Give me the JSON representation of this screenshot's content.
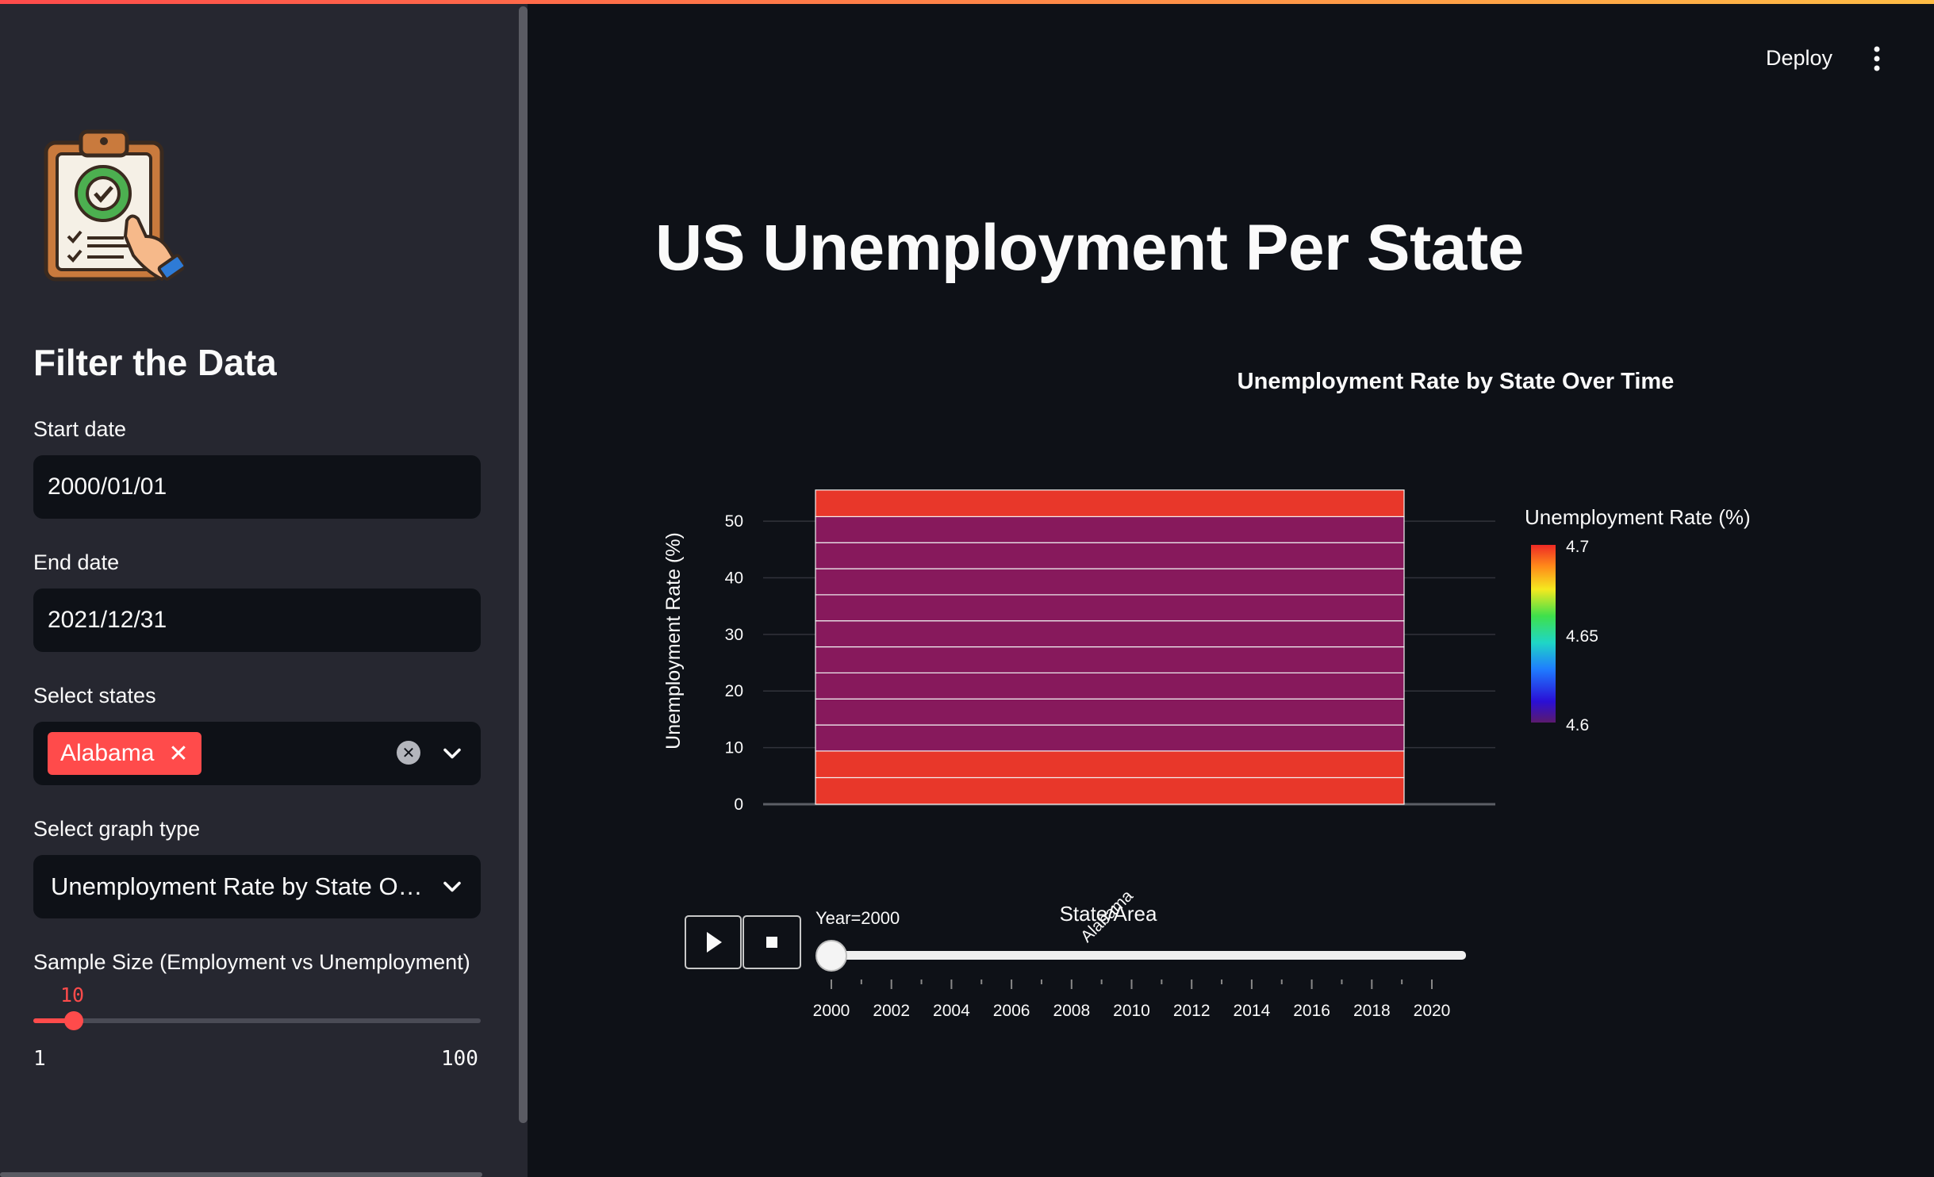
{
  "sidebar": {
    "logo_icon": "clipboard-gear-check-icon",
    "title": "Filter the Data",
    "start_date": {
      "label": "Start date",
      "value": "2000/01/01"
    },
    "end_date": {
      "label": "End date",
      "value": "2021/12/31"
    },
    "states": {
      "label": "Select states",
      "selected": [
        "Alabama"
      ]
    },
    "graph_type": {
      "label": "Select graph type",
      "value": "Unemployment Rate by State O…"
    },
    "sample_size": {
      "label": "Sample Size (Employment vs Unemployment)",
      "value": 10,
      "min": 1,
      "max": 100,
      "min_label": "1",
      "max_label": "100",
      "value_label": "10"
    }
  },
  "header": {
    "deploy_label": "Deploy",
    "menu_icon": "more-vertical-icon"
  },
  "main": {
    "title": "US Unemployment Per State"
  },
  "chart_data": {
    "type": "bar",
    "title": "Unemployment Rate by State Over Time",
    "xlabel": "State/Area",
    "ylabel": "Unemployment Rate (%)",
    "categories": [
      "Alabama"
    ],
    "stack_segments_rate": [
      4.7,
      4.7,
      4.6,
      4.6,
      4.6,
      4.6,
      4.6,
      4.6,
      4.6,
      4.6,
      4.6,
      4.7
    ],
    "total": 55.6,
    "yticks": [
      "0",
      "10",
      "20",
      "30",
      "40",
      "50"
    ],
    "ylim": [
      0,
      58
    ],
    "colorbar": {
      "title": "Unemployment Rate (%)",
      "ticks": [
        "4.7",
        "4.65",
        "4.6"
      ],
      "min": 4.6,
      "max": 4.7
    },
    "animation": {
      "current_label": "Year=2000",
      "years": [
        "2000",
        "2002",
        "2004",
        "2006",
        "2008",
        "2010",
        "2012",
        "2014",
        "2016",
        "2018",
        "2020"
      ],
      "current_index": 0,
      "play_icon": "play-icon",
      "stop_icon": "stop-icon"
    },
    "colors": {
      "high": "#e8372a",
      "low": "#87195c"
    }
  }
}
